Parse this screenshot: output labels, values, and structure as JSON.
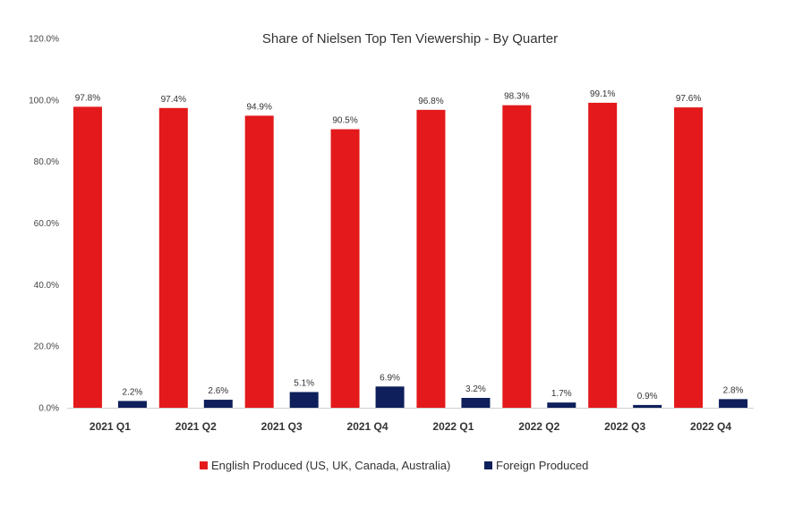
{
  "chart_data": {
    "type": "bar",
    "title": "Share of Nielsen Top Ten Viewership - By Quarter",
    "xlabel": "",
    "ylabel": "",
    "ylim": [
      0,
      120
    ],
    "yticks": [
      0,
      20,
      40,
      60,
      80,
      100,
      120
    ],
    "ytick_labels": [
      "0.0%",
      "20.0%",
      "40.0%",
      "60.0%",
      "80.0%",
      "100.0%",
      "120.0%"
    ],
    "categories": [
      "2021 Q1",
      "2021 Q2",
      "2021 Q3",
      "2021 Q4",
      "2022 Q1",
      "2022 Q2",
      "2022 Q3",
      "2022 Q4"
    ],
    "series": [
      {
        "name": "English Produced (US, UK, Canada, Australia)",
        "color": "#E3191B",
        "values": [
          97.8,
          97.4,
          94.9,
          90.5,
          96.8,
          98.3,
          99.1,
          97.6
        ],
        "labels": [
          "97.8%",
          "97.4%",
          "94.9%",
          "90.5%",
          "96.8%",
          "98.3%",
          "99.1%",
          "97.6%"
        ]
      },
      {
        "name": "Foreign Produced",
        "color": "#0E1F5B",
        "values": [
          2.2,
          2.6,
          5.1,
          6.9,
          3.2,
          1.7,
          0.9,
          2.8
        ],
        "labels": [
          "2.2%",
          "2.6%",
          "5.1%",
          "6.9%",
          "3.2%",
          "1.7%",
          "0.9%",
          "2.8%"
        ]
      }
    ],
    "grid": false,
    "legend_position": "bottom"
  }
}
